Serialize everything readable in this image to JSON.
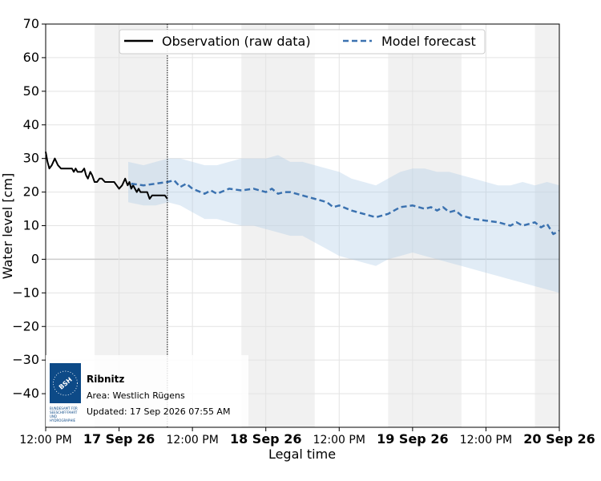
{
  "chart_data": {
    "type": "line",
    "xlabel": "Legal time",
    "ylabel": "Water level [cm]",
    "ylim": [
      -50,
      70
    ],
    "yticks": [
      70,
      60,
      50,
      40,
      30,
      20,
      10,
      0,
      -10,
      -20,
      -30,
      -40
    ],
    "ytick_labels": [
      "70",
      "60",
      "50",
      "40",
      "30",
      "20",
      "10",
      "0",
      "−10",
      "−20",
      "−30",
      "−40"
    ],
    "xlim": [
      0,
      84
    ],
    "xticks": [
      {
        "x": 0,
        "label": "12:00 PM",
        "bold": false
      },
      {
        "x": 12,
        "label": "17 Sep 26",
        "bold": true
      },
      {
        "x": 24,
        "label": "12:00 PM",
        "bold": false
      },
      {
        "x": 36,
        "label": "18 Sep 26",
        "bold": true
      },
      {
        "x": 48,
        "label": "12:00 PM",
        "bold": false
      },
      {
        "x": 60,
        "label": "19 Sep 26",
        "bold": true
      },
      {
        "x": 72,
        "label": "12:00 PM",
        "bold": false
      },
      {
        "x": 84,
        "label": "20 Sep 26",
        "bold": true
      }
    ],
    "x_units": "hours after 16 Sep 26 12:00 PM",
    "night_bands": [
      [
        8,
        20
      ],
      [
        32,
        44
      ],
      [
        56,
        68
      ],
      [
        80,
        84
      ]
    ],
    "now_x": 19.9,
    "grid": true,
    "legend_position": "top-center",
    "series": [
      {
        "name": "Observation (raw data)",
        "style": "solid",
        "color": "#000000",
        "x": [
          0,
          0.3,
          0.6,
          1,
          1.5,
          2,
          2.5,
          3,
          3.5,
          4,
          4.3,
          4.6,
          4.9,
          5.2,
          5.5,
          5.9,
          6.3,
          6.6,
          6.9,
          7.3,
          7.6,
          8,
          8.4,
          8.8,
          9.2,
          9.7,
          10.2,
          10.7,
          11.2,
          11.6,
          12,
          12.5,
          13,
          13.4,
          13.7,
          14,
          14.3,
          14.6,
          14.9,
          15.2,
          15.5,
          15.8,
          16.2,
          16.6,
          17,
          17.4,
          17.8,
          18.2,
          18.6,
          19,
          19.5,
          19.9
        ],
        "y": [
          32,
          29,
          27,
          28,
          30,
          28,
          27,
          27,
          27,
          27,
          27,
          26,
          27,
          26,
          26,
          26,
          27,
          25,
          24,
          26,
          25,
          23,
          23,
          24,
          24,
          23,
          23,
          23,
          23,
          22,
          21,
          22,
          24,
          22,
          23,
          21,
          22,
          21,
          20,
          21,
          20,
          20,
          20,
          20,
          18,
          19,
          19,
          19,
          19,
          19,
          19,
          18
        ]
      },
      {
        "name": "Model forecast",
        "style": "dashed",
        "color": "#3b72b0",
        "x": [
          14,
          16,
          18,
          19.9,
          21,
          22,
          23,
          24,
          26,
          27,
          28,
          30,
          32,
          34,
          36,
          37,
          38,
          39,
          40,
          42,
          44,
          46,
          47,
          48,
          50,
          52,
          54,
          56,
          58,
          60,
          62,
          63,
          64,
          65,
          66,
          67,
          68,
          70,
          72,
          74,
          76,
          77,
          78,
          79,
          80,
          81,
          82,
          82.5,
          83,
          84
        ],
        "y": [
          22.5,
          22,
          22.5,
          23,
          23.5,
          21.5,
          22.5,
          21,
          19.5,
          20.5,
          19.5,
          21,
          20.5,
          21,
          20,
          21,
          19.5,
          20,
          20,
          19,
          18,
          17,
          15.5,
          16,
          14.5,
          13.5,
          12.5,
          13.5,
          15.5,
          16,
          15,
          15.5,
          14.5,
          15.5,
          14,
          14.5,
          13,
          12,
          11.5,
          11,
          10,
          11,
          10,
          10.5,
          11,
          9.5,
          10.5,
          9,
          7.5,
          8.5
        ]
      }
    ],
    "uncertainty_band": {
      "color": "#aac9e6",
      "x": [
        13.5,
        16,
        18,
        20,
        22,
        24,
        26,
        28,
        30,
        32,
        34,
        36,
        38,
        40,
        42,
        44,
        46,
        48,
        50,
        52,
        54,
        56,
        58,
        60,
        62,
        64,
        66,
        68,
        70,
        72,
        74,
        76,
        78,
        80,
        82,
        84
      ],
      "upper": [
        29,
        28,
        29,
        30,
        30,
        29,
        28,
        28,
        29,
        30,
        30,
        30,
        31,
        29,
        29,
        28,
        27,
        26,
        24,
        23,
        22,
        24,
        26,
        27,
        27,
        26,
        26,
        25,
        24,
        23,
        22,
        22,
        23,
        22,
        23,
        22
      ],
      "lower": [
        17,
        16,
        16,
        17,
        16,
        14,
        12,
        12,
        11,
        10,
        10,
        9,
        8,
        7,
        7,
        5,
        3,
        1,
        0,
        -1,
        -2,
        0,
        1,
        2,
        1,
        0,
        -1,
        -2,
        -3,
        -4,
        -5,
        -6,
        -7,
        -8,
        -9,
        -10
      ]
    }
  },
  "info_box": {
    "station": "Ribnitz",
    "area": "Area: Westlich Rügens",
    "updated": "Updated: 17 Sep 2026 07:55 AM",
    "logo": {
      "abbr": "BSH",
      "text_lines": [
        "BUNDESAMT FÜR",
        "SEESCHIFFFAHRT",
        "UND",
        "HYDROGRAPHIE"
      ],
      "color": "#0d4a87"
    }
  }
}
